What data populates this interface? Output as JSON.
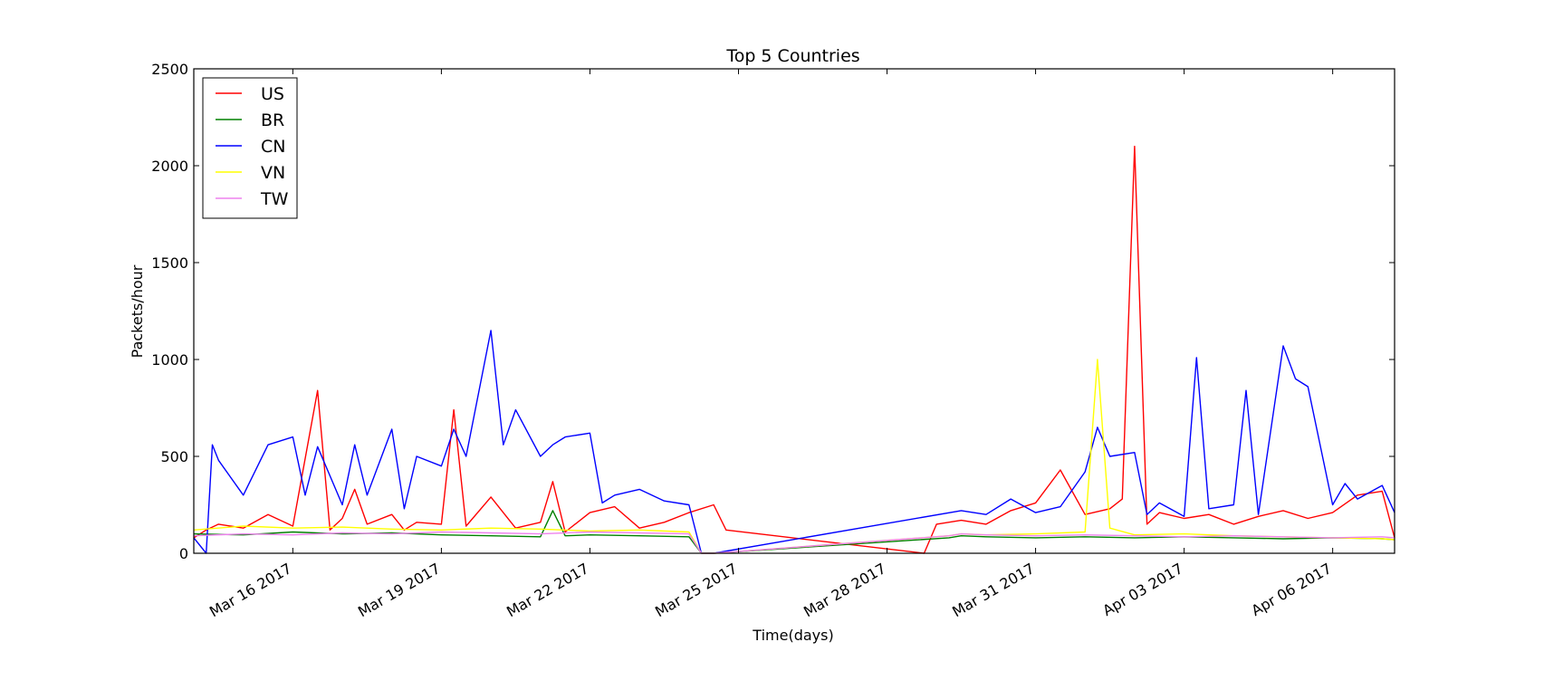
{
  "chart_data": {
    "type": "line",
    "title": "Top 5 Countries",
    "xlabel": "Time(days)",
    "ylabel": "Packets/hour",
    "x_range": [
      "2017-03-14",
      "2017-04-07 06:00"
    ],
    "ylim": [
      0,
      2500
    ],
    "y_ticks": [
      0,
      500,
      1000,
      1500,
      2000,
      2500
    ],
    "y_tick_labels": [
      "0",
      "500",
      "1000",
      "1500",
      "2000",
      "2500"
    ],
    "x_ticks": [
      "2017-03-16",
      "2017-03-19",
      "2017-03-22",
      "2017-03-25",
      "2017-03-28",
      "2017-03-31",
      "2017-04-03",
      "2017-04-06"
    ],
    "x_tick_labels": [
      "Mar 16 2017",
      "Mar 19 2017",
      "Mar 22 2017",
      "Mar 25 2017",
      "Mar 28 2017",
      "Mar 31 2017",
      "Apr 03 2017",
      "Apr 06 2017"
    ],
    "grid": false,
    "legend_position": "top-left",
    "series": [
      {
        "name": "US",
        "color": "#ff0000",
        "x": [
          "2017-03-14",
          "2017-03-14 06:00",
          "2017-03-14 12:00",
          "2017-03-15",
          "2017-03-15 12:00",
          "2017-03-16",
          "2017-03-16 12:00",
          "2017-03-16 18:00",
          "2017-03-17",
          "2017-03-17 06:00",
          "2017-03-17 12:00",
          "2017-03-18",
          "2017-03-18 06:00",
          "2017-03-18 12:00",
          "2017-03-19",
          "2017-03-19 06:00",
          "2017-03-19 12:00",
          "2017-03-20",
          "2017-03-20 12:00",
          "2017-03-21",
          "2017-03-21 06:00",
          "2017-03-21 12:00",
          "2017-03-22",
          "2017-03-22 12:00",
          "2017-03-23",
          "2017-03-23 12:00",
          "2017-03-24",
          "2017-03-24 12:00",
          "2017-03-24 18:00",
          "2017-03-28 18:00",
          "2017-03-29",
          "2017-03-29 12:00",
          "2017-03-30",
          "2017-03-30 12:00",
          "2017-03-31",
          "2017-03-31 12:00",
          "2017-04-01",
          "2017-04-01 12:00",
          "2017-04-01 18:00",
          "2017-04-02",
          "2017-04-02 06:00",
          "2017-04-02 12:00",
          "2017-04-03",
          "2017-04-03 12:00",
          "2017-04-04",
          "2017-04-04 12:00",
          "2017-04-05",
          "2017-04-05 12:00",
          "2017-04-06",
          "2017-04-06 12:00",
          "2017-04-07",
          "2017-04-07 06:00"
        ],
        "y": [
          80,
          120,
          150,
          130,
          200,
          140,
          840,
          120,
          180,
          330,
          150,
          200,
          120,
          160,
          150,
          740,
          140,
          290,
          130,
          160,
          370,
          110,
          210,
          240,
          130,
          160,
          210,
          250,
          120,
          0,
          150,
          170,
          150,
          220,
          260,
          430,
          200,
          230,
          280,
          2100,
          150,
          210,
          180,
          200,
          150,
          190,
          220,
          180,
          210,
          300,
          320,
          80
        ]
      },
      {
        "name": "BR",
        "color": "#008000",
        "x": [
          "2017-03-14",
          "2017-03-15",
          "2017-03-16",
          "2017-03-17",
          "2017-03-18",
          "2017-03-19",
          "2017-03-20",
          "2017-03-21",
          "2017-03-21 06:00",
          "2017-03-21 12:00",
          "2017-03-22",
          "2017-03-23",
          "2017-03-24",
          "2017-03-24 06:00",
          "2017-03-24 12:00",
          "2017-03-29 06:00",
          "2017-03-29 12:00",
          "2017-03-30",
          "2017-03-31",
          "2017-04-01",
          "2017-04-02",
          "2017-04-03",
          "2017-04-04",
          "2017-04-05",
          "2017-04-06",
          "2017-04-07",
          "2017-04-07 06:00"
        ],
        "y": [
          100,
          95,
          110,
          100,
          105,
          95,
          90,
          85,
          220,
          90,
          95,
          90,
          85,
          0,
          0,
          80,
          90,
          85,
          80,
          85,
          80,
          85,
          80,
          75,
          80,
          75,
          70
        ]
      },
      {
        "name": "CN",
        "color": "#0000ff",
        "x": [
          "2017-03-14",
          "2017-03-14 06:00",
          "2017-03-14 09:00",
          "2017-03-14 12:00",
          "2017-03-15",
          "2017-03-15 12:00",
          "2017-03-16",
          "2017-03-16 06:00",
          "2017-03-16 12:00",
          "2017-03-17",
          "2017-03-17 06:00",
          "2017-03-17 12:00",
          "2017-03-18",
          "2017-03-18 06:00",
          "2017-03-18 12:00",
          "2017-03-19",
          "2017-03-19 06:00",
          "2017-03-19 12:00",
          "2017-03-20",
          "2017-03-20 06:00",
          "2017-03-20 12:00",
          "2017-03-21",
          "2017-03-21 06:00",
          "2017-03-21 12:00",
          "2017-03-22",
          "2017-03-22 06:00",
          "2017-03-22 12:00",
          "2017-03-23",
          "2017-03-23 12:00",
          "2017-03-24",
          "2017-03-24 06:00",
          "2017-03-24 12:00",
          "2017-03-29 12:00",
          "2017-03-30",
          "2017-03-30 12:00",
          "2017-03-31",
          "2017-03-31 12:00",
          "2017-04-01",
          "2017-04-01 06:00",
          "2017-04-01 12:00",
          "2017-04-02",
          "2017-04-02 06:00",
          "2017-04-02 12:00",
          "2017-04-03",
          "2017-04-03 06:00",
          "2017-04-03 12:00",
          "2017-04-04",
          "2017-04-04 06:00",
          "2017-04-04 12:00",
          "2017-04-05",
          "2017-04-05 06:00",
          "2017-04-05 12:00",
          "2017-04-06",
          "2017-04-06 06:00",
          "2017-04-06 12:00",
          "2017-04-07",
          "2017-04-07 06:00"
        ],
        "y": [
          80,
          0,
          560,
          480,
          300,
          560,
          600,
          300,
          550,
          250,
          560,
          300,
          640,
          230,
          500,
          450,
          640,
          500,
          1150,
          560,
          740,
          500,
          560,
          600,
          620,
          260,
          300,
          330,
          270,
          250,
          0,
          0,
          220,
          200,
          280,
          210,
          240,
          420,
          650,
          500,
          520,
          200,
          260,
          190,
          1010,
          230,
          250,
          840,
          200,
          1070,
          900,
          860,
          250,
          360,
          280,
          350,
          210
        ]
      },
      {
        "name": "VN",
        "color": "#ffff00",
        "x": [
          "2017-03-14",
          "2017-03-15",
          "2017-03-16",
          "2017-03-17",
          "2017-03-18",
          "2017-03-19",
          "2017-03-20",
          "2017-03-21",
          "2017-03-22",
          "2017-03-23",
          "2017-03-24",
          "2017-03-24 06:00",
          "2017-03-24 12:00",
          "2017-03-29 06:00",
          "2017-03-29 12:00",
          "2017-03-30",
          "2017-03-31",
          "2017-04-01",
          "2017-04-01 06:00",
          "2017-04-01 12:00",
          "2017-04-02",
          "2017-04-03",
          "2017-04-04",
          "2017-04-05",
          "2017-04-06",
          "2017-04-07",
          "2017-04-07 06:00"
        ],
        "y": [
          120,
          140,
          130,
          135,
          125,
          120,
          130,
          125,
          115,
          120,
          110,
          0,
          0,
          90,
          100,
          95,
          100,
          110,
          1000,
          130,
          95,
          100,
          90,
          85,
          80,
          75,
          70
        ]
      },
      {
        "name": "TW",
        "color": "#ee82ee",
        "x": [
          "2017-03-14",
          "2017-03-15",
          "2017-03-16",
          "2017-03-17",
          "2017-03-18",
          "2017-03-19",
          "2017-03-20",
          "2017-03-21",
          "2017-03-22",
          "2017-03-23",
          "2017-03-24",
          "2017-03-24 06:00",
          "2017-03-24 12:00",
          "2017-03-29 06:00",
          "2017-03-29 12:00",
          "2017-03-30",
          "2017-03-31",
          "2017-04-01",
          "2017-04-02",
          "2017-04-03",
          "2017-04-04",
          "2017-04-05",
          "2017-04-06",
          "2017-04-07",
          "2017-04-07 06:00"
        ],
        "y": [
          90,
          100,
          95,
          105,
          100,
          110,
          105,
          100,
          110,
          105,
          100,
          0,
          0,
          90,
          100,
          95,
          90,
          95,
          90,
          85,
          90,
          85,
          80,
          85,
          80
        ]
      }
    ]
  }
}
